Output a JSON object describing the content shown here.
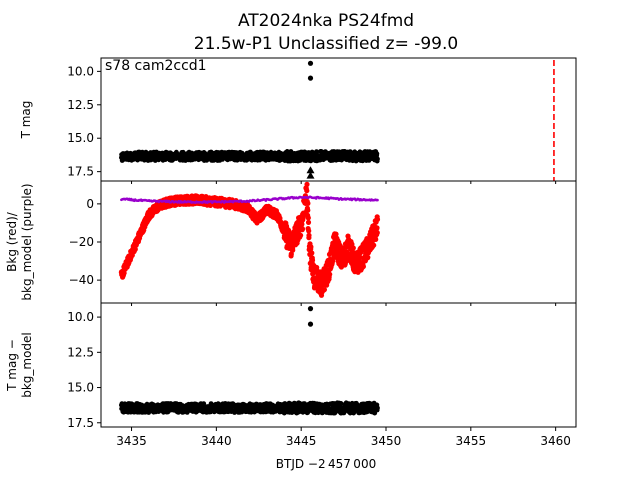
{
  "chart_data": {
    "type": "scatter",
    "title_line1": "AT2024nka  PS24fmd",
    "title_line2": "21.5w-P1 Unclassified z= -99.0",
    "annotation": "s78 cam2ccd1",
    "xlabel": "BTJD −2 457 000",
    "x_ticks": [
      3435,
      3440,
      3445,
      3450,
      3455,
      3460
    ],
    "xlim": [
      3433.2,
      3461.2
    ],
    "panels": [
      {
        "id": "tmag",
        "ylabel": [
          "T mag"
        ],
        "ylim": [
          18.2,
          9.0
        ],
        "y_tick_labels": [
          "10.0",
          "12.5",
          "15.0",
          "17.5"
        ],
        "series": [
          {
            "color": "#000000",
            "type": "dense_band",
            "x_range": [
              3434.4,
              3449.5
            ],
            "y_center": 16.35,
            "y_spread": 0.32
          },
          {
            "color": "#000000",
            "type": "points",
            "x": [
              3445.55,
              3445.55
            ],
            "y": [
              9.4,
              10.5
            ]
          },
          {
            "color": "#000000",
            "type": "markers_triangle",
            "x": [
              3445.55,
              3445.55
            ],
            "y": [
              17.4,
              17.8
            ]
          }
        ],
        "vline": {
          "x": 3459.9,
          "color": "#ff0000",
          "style": "dashed"
        }
      },
      {
        "id": "bkg",
        "ylabel": [
          "Bkg (red)/",
          "bkg_model (purple)"
        ],
        "ylim": [
          -52,
          12
        ],
        "y_tick_labels": [
          "0",
          "−20",
          "−40"
        ],
        "series": [
          {
            "name": "Bkg",
            "color": "#ff0000",
            "x": [
              3434.4,
              3434.8,
              3435.2,
              3435.6,
              3436.0,
              3436.6,
              3437.2,
              3438.0,
              3439.0,
              3440.0,
              3441.0,
              3441.8,
              3442.4,
              3443.0,
              3443.6,
              3444.0,
              3444.4,
              3444.8,
              3445.1,
              3445.3,
              3445.5,
              3445.8,
              3446.2,
              3446.6,
              3447.0,
              3447.4,
              3447.8,
              3448.2,
              3448.6,
              3449.0,
              3449.5
            ],
            "y": [
              -38,
              -30,
              -22,
              -14,
              -6,
              -1,
              1,
              2,
              2,
              1,
              0,
              -2,
              -8,
              -3,
              -6,
              -14,
              -22,
              -14,
              -8,
              14,
              -25,
              -38,
              -42,
              -35,
              -20,
              -30,
              -22,
              -32,
              -28,
              -22,
              -12
            ]
          },
          {
            "name": "bkg_model",
            "color": "#9900cc",
            "x": [
              3434.4,
              3436.0,
              3438.0,
              3440.0,
              3442.0,
              3443.5,
              3445.0,
              3446.5,
              3447.5,
              3449.5
            ],
            "y": [
              2.5,
              1.5,
              1.0,
              1.0,
              1.5,
              2.5,
              3.5,
              3.0,
              2.5,
              2.0
            ]
          }
        ]
      },
      {
        "id": "diff",
        "ylabel": [
          "T mag −",
          "bkg_model"
        ],
        "ylim": [
          17.8,
          9.0
        ],
        "y_tick_labels": [
          "10.0",
          "12.5",
          "15.0",
          "17.5"
        ],
        "series": [
          {
            "color": "#000000",
            "type": "dense_band",
            "x_range": [
              3434.4,
              3449.5
            ],
            "y_center": 16.45,
            "y_spread": 0.32
          },
          {
            "color": "#000000",
            "type": "points",
            "x": [
              3445.55,
              3445.55
            ],
            "y": [
              9.4,
              10.5
            ]
          }
        ]
      }
    ]
  }
}
